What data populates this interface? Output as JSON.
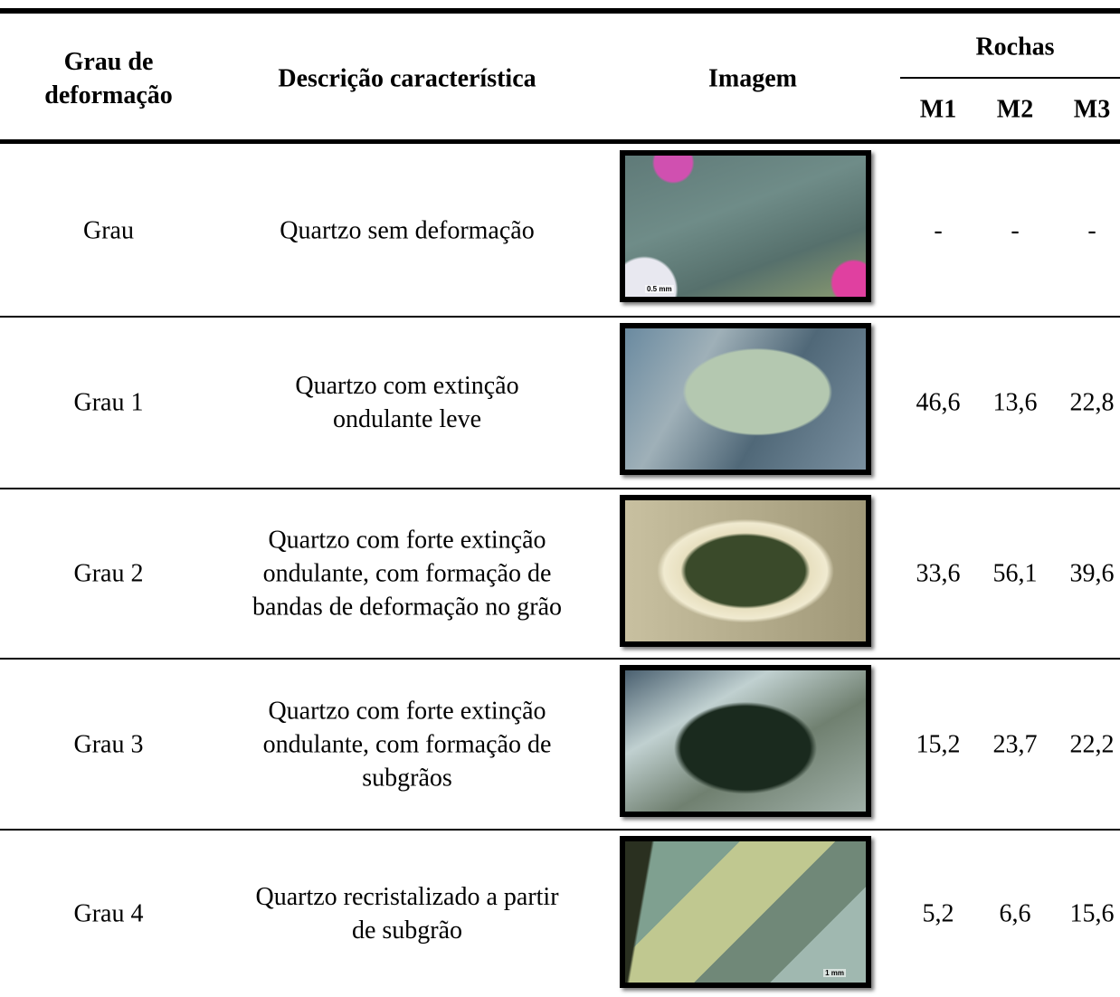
{
  "header": {
    "grade": [
      "Grau de",
      "deformação"
    ],
    "description": "Descrição característica",
    "image": "Imagem",
    "rocks": "Rochas",
    "samples": [
      "M1",
      "M2",
      "M3"
    ]
  },
  "table": {
    "rows": [
      {
        "grade": "Grau",
        "description": [
          "Quartzo sem deformação"
        ],
        "scale": "0.5 mm",
        "values": [
          "-",
          "-",
          "-"
        ]
      },
      {
        "grade": "Grau 1",
        "description": [
          "Quartzo com extinção",
          "ondulante leve"
        ],
        "values": [
          "46,6",
          "13,6",
          "22,8"
        ]
      },
      {
        "grade": "Grau 2",
        "description": [
          "Quartzo com forte extinção",
          "ondulante, com formação de",
          "bandas de deformação no grão"
        ],
        "values": [
          "33,6",
          "56,1",
          "39,6"
        ]
      },
      {
        "grade": "Grau 3",
        "description": [
          "Quartzo com forte extinção",
          "ondulante, com formação de",
          "subgrãos"
        ],
        "values": [
          "15,2",
          "23,7",
          "22,2"
        ]
      },
      {
        "grade": "Grau 4",
        "description": [
          "Quartzo recristalizado a partir",
          "de subgrão"
        ],
        "scale": "1 mm",
        "values": [
          "5,2",
          "6,6",
          "15,6"
        ]
      }
    ]
  }
}
